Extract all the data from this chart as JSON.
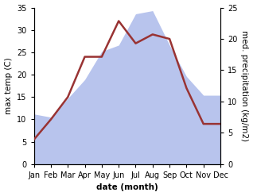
{
  "months": [
    "Jan",
    "Feb",
    "Mar",
    "Apr",
    "May",
    "Jun",
    "Jul",
    "Aug",
    "Sep",
    "Oct",
    "Nov",
    "Dec"
  ],
  "temperature": [
    5.5,
    10.0,
    15.0,
    24.0,
    24.0,
    32.0,
    27.0,
    29.0,
    28.0,
    17.0,
    9.0,
    9.0
  ],
  "precipitation": [
    8.0,
    7.5,
    10.5,
    13.5,
    18.0,
    19.0,
    24.0,
    24.5,
    19.0,
    14.0,
    11.0,
    11.0
  ],
  "temp_color": "#993333",
  "precip_color": "#b8c4ed",
  "temp_ylim": [
    0,
    35
  ],
  "precip_ylim": [
    0,
    25
  ],
  "temp_yticks": [
    0,
    5,
    10,
    15,
    20,
    25,
    30,
    35
  ],
  "precip_yticks": [
    0,
    5,
    10,
    15,
    20,
    25
  ],
  "ylabel_left": "max temp (C)",
  "ylabel_right": "med. precipitation (kg/m2)",
  "xlabel": "date (month)",
  "bg_color": "#ffffff",
  "line_width": 1.8,
  "label_fontsize": 7.5,
  "tick_fontsize": 7.0
}
